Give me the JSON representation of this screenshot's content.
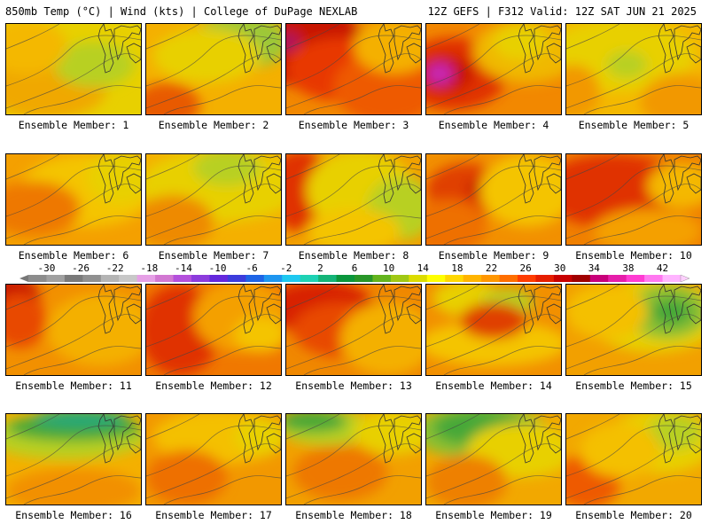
{
  "header": {
    "left": "850mb Temp (°C) | Wind (kts) | College of DuPage NEXLAB",
    "right": "12Z GEFS | F312 Valid: 12Z SAT JUN 21 2025"
  },
  "colorbar": {
    "labels": [
      "-30",
      "-26",
      "-22",
      "-18",
      "-14",
      "-10",
      "-6",
      "-2",
      "2",
      "6",
      "10",
      "14",
      "18",
      "22",
      "26",
      "30",
      "34",
      "38",
      "42"
    ],
    "colors": [
      "#8c8c8c",
      "#a0a0a0",
      "#7a7a7a",
      "#909090",
      "#b4b4b4",
      "#c8c8c8",
      "#e6a0e6",
      "#d278d2",
      "#b450dc",
      "#8c3cdc",
      "#6428dc",
      "#3c3cdc",
      "#1e64e6",
      "#1e96f0",
      "#1ec8f0",
      "#1ed2b4",
      "#14b478",
      "#0a963c",
      "#289628",
      "#64b41e",
      "#a0c814",
      "#dcdc00",
      "#ffff00",
      "#ffd700",
      "#ffb400",
      "#ff9600",
      "#ff6e00",
      "#ff3c00",
      "#e61e00",
      "#c80000",
      "#a00000",
      "#c8007a",
      "#e61eaa",
      "#ff3cd2",
      "#ff78f0",
      "#ffb4ff"
    ]
  },
  "members": [
    {
      "label": "Ensemble Member: 1",
      "base": "#e8d000",
      "blobs": [
        [
          "#f0a800",
          0.3,
          0.7,
          0.45,
          0.35
        ],
        [
          "#b8d020",
          0.65,
          0.45,
          0.3,
          0.25
        ],
        [
          "#f4b800",
          0.15,
          0.25,
          0.3,
          0.3
        ]
      ]
    },
    {
      "label": "Ensemble Member: 2",
      "base": "#f4b000",
      "blobs": [
        [
          "#9cc838",
          0.7,
          0.2,
          0.35,
          0.3
        ],
        [
          "#e85a00",
          0.15,
          0.9,
          0.25,
          0.25
        ],
        [
          "#e8d000",
          0.45,
          0.35,
          0.4,
          0.3
        ]
      ]
    },
    {
      "label": "Ensemble Member: 3",
      "base": "#f28800",
      "blobs": [
        [
          "#c81800",
          0.15,
          0.25,
          0.45,
          0.45
        ],
        [
          "#e83800",
          0.4,
          0.5,
          0.4,
          0.35
        ],
        [
          "#ee5a00",
          0.75,
          0.7,
          0.4,
          0.4
        ],
        [
          "#f4b000",
          0.8,
          0.25,
          0.3,
          0.3
        ],
        [
          "#aa1860",
          0.02,
          0.2,
          0.08,
          0.1
        ]
      ]
    },
    {
      "label": "Ensemble Member: 4",
      "base": "#f28800",
      "blobs": [
        [
          "#e03000",
          0.2,
          0.55,
          0.4,
          0.4
        ],
        [
          "#c81800",
          0.15,
          0.55,
          0.2,
          0.2
        ],
        [
          "#c828b4",
          0.1,
          0.55,
          0.1,
          0.12
        ],
        [
          "#f0b800",
          0.75,
          0.3,
          0.4,
          0.35
        ],
        [
          "#e8d000",
          0.7,
          0.2,
          0.2,
          0.2
        ]
      ]
    },
    {
      "label": "Ensemble Member: 5",
      "base": "#f4b800",
      "blobs": [
        [
          "#e8d000",
          0.4,
          0.35,
          0.55,
          0.4
        ],
        [
          "#b8d020",
          0.45,
          0.45,
          0.15,
          0.15
        ],
        [
          "#f29800",
          0.85,
          0.85,
          0.3,
          0.3
        ],
        [
          "#f29800",
          0.05,
          0.75,
          0.2,
          0.3
        ]
      ]
    },
    {
      "label": "Ensemble Member: 6",
      "base": "#f4a000",
      "blobs": [
        [
          "#f4c400",
          0.6,
          0.4,
          0.5,
          0.4
        ],
        [
          "#e8d000",
          0.85,
          0.25,
          0.25,
          0.3
        ],
        [
          "#ee7800",
          0.2,
          0.6,
          0.35,
          0.3
        ]
      ]
    },
    {
      "label": "Ensemble Member: 7",
      "base": "#f4b000",
      "blobs": [
        [
          "#e8d000",
          0.55,
          0.35,
          0.6,
          0.4
        ],
        [
          "#b8d020",
          0.6,
          0.15,
          0.25,
          0.2
        ],
        [
          "#ee8a00",
          0.2,
          0.75,
          0.3,
          0.3
        ]
      ]
    },
    {
      "label": "Ensemble Member: 8",
      "base": "#f2a000",
      "blobs": [
        [
          "#e03000",
          0.1,
          0.4,
          0.25,
          0.45
        ],
        [
          "#e8d000",
          0.55,
          0.4,
          0.4,
          0.45
        ],
        [
          "#b8d020",
          0.85,
          0.6,
          0.25,
          0.35
        ],
        [
          "#f4c400",
          0.5,
          0.85,
          0.35,
          0.25
        ]
      ]
    },
    {
      "label": "Ensemble Member: 9",
      "base": "#f29000",
      "blobs": [
        [
          "#e04000",
          0.3,
          0.4,
          0.3,
          0.3
        ],
        [
          "#c81800",
          0.38,
          0.38,
          0.08,
          0.1
        ],
        [
          "#f4c400",
          0.75,
          0.4,
          0.35,
          0.4
        ],
        [
          "#ee7000",
          0.15,
          0.8,
          0.3,
          0.3
        ]
      ]
    },
    {
      "label": "Ensemble Member: 10",
      "base": "#f08000",
      "blobs": [
        [
          "#e03000",
          0.35,
          0.4,
          0.55,
          0.4
        ],
        [
          "#f4b800",
          0.85,
          0.35,
          0.25,
          0.25
        ],
        [
          "#f4a000",
          0.6,
          0.85,
          0.4,
          0.25
        ]
      ]
    },
    {
      "label": "Ensemble Member: 11",
      "base": "#f29000",
      "blobs": [
        [
          "#c81800",
          0.05,
          0.15,
          0.2,
          0.25
        ],
        [
          "#e84800",
          0.1,
          0.4,
          0.2,
          0.3
        ],
        [
          "#f4b000",
          0.7,
          0.5,
          0.4,
          0.4
        ]
      ]
    },
    {
      "label": "Ensemble Member: 12",
      "base": "#f07800",
      "blobs": [
        [
          "#e03000",
          0.25,
          0.5,
          0.3,
          0.5
        ],
        [
          "#f4a000",
          0.7,
          0.35,
          0.35,
          0.4
        ],
        [
          "#f4c400",
          0.85,
          0.55,
          0.2,
          0.2
        ]
      ]
    },
    {
      "label": "Ensemble Member: 13",
      "base": "#f08800",
      "blobs": [
        [
          "#d82000",
          0.25,
          0.25,
          0.4,
          0.3
        ],
        [
          "#e84800",
          0.4,
          0.5,
          0.35,
          0.3
        ],
        [
          "#f4b000",
          0.75,
          0.6,
          0.35,
          0.4
        ]
      ]
    },
    {
      "label": "Ensemble Member: 14",
      "base": "#f29000",
      "blobs": [
        [
          "#f4c400",
          0.5,
          0.65,
          0.55,
          0.25
        ],
        [
          "#e8d000",
          0.3,
          0.15,
          0.25,
          0.2
        ],
        [
          "#b8d020",
          0.6,
          0.2,
          0.2,
          0.15
        ],
        [
          "#e04000",
          0.5,
          0.4,
          0.25,
          0.2
        ]
      ]
    },
    {
      "label": "Ensemble Member: 15",
      "base": "#f2a000",
      "blobs": [
        [
          "#e8d000",
          0.65,
          0.35,
          0.5,
          0.4
        ],
        [
          "#8cc030",
          0.75,
          0.3,
          0.3,
          0.3
        ],
        [
          "#46a838",
          0.78,
          0.3,
          0.15,
          0.15
        ],
        [
          "#f4c000",
          0.3,
          0.3,
          0.3,
          0.3
        ]
      ]
    },
    {
      "label": "Ensemble Member: 16",
      "base": "#f4b000",
      "blobs": [
        [
          "#b8d020",
          0.45,
          0.25,
          0.6,
          0.25
        ],
        [
          "#46a838",
          0.5,
          0.15,
          0.5,
          0.15
        ],
        [
          "#20a878",
          0.55,
          0.05,
          0.35,
          0.1
        ],
        [
          "#f29000",
          0.5,
          0.85,
          0.5,
          0.25
        ]
      ]
    },
    {
      "label": "Ensemble Member: 17",
      "base": "#f29800",
      "blobs": [
        [
          "#f4c000",
          0.55,
          0.25,
          0.5,
          0.3
        ],
        [
          "#e8d000",
          0.85,
          0.25,
          0.2,
          0.2
        ],
        [
          "#ee7000",
          0.3,
          0.7,
          0.3,
          0.3
        ]
      ]
    },
    {
      "label": "Ensemble Member: 18",
      "base": "#f2a000",
      "blobs": [
        [
          "#b8d020",
          0.3,
          0.15,
          0.35,
          0.2
        ],
        [
          "#46a838",
          0.2,
          0.08,
          0.25,
          0.12
        ],
        [
          "#e8d000",
          0.8,
          0.2,
          0.3,
          0.25
        ],
        [
          "#ee7800",
          0.4,
          0.65,
          0.35,
          0.3
        ]
      ]
    },
    {
      "label": "Ensemble Member: 19",
      "base": "#f2a800",
      "blobs": [
        [
          "#8cc030",
          0.4,
          0.2,
          0.5,
          0.3
        ],
        [
          "#46a838",
          0.4,
          0.15,
          0.35,
          0.2
        ],
        [
          "#e8d000",
          0.7,
          0.4,
          0.4,
          0.3
        ],
        [
          "#ee8000",
          0.3,
          0.75,
          0.3,
          0.3
        ]
      ]
    },
    {
      "label": "Ensemble Member: 20",
      "base": "#f2a800",
      "blobs": [
        [
          "#e8d000",
          0.7,
          0.3,
          0.4,
          0.35
        ],
        [
          "#b8d020",
          0.8,
          0.2,
          0.2,
          0.2
        ],
        [
          "#ee5a00",
          0.15,
          0.75,
          0.25,
          0.3
        ],
        [
          "#f4c000",
          0.4,
          0.4,
          0.3,
          0.3
        ]
      ]
    }
  ]
}
